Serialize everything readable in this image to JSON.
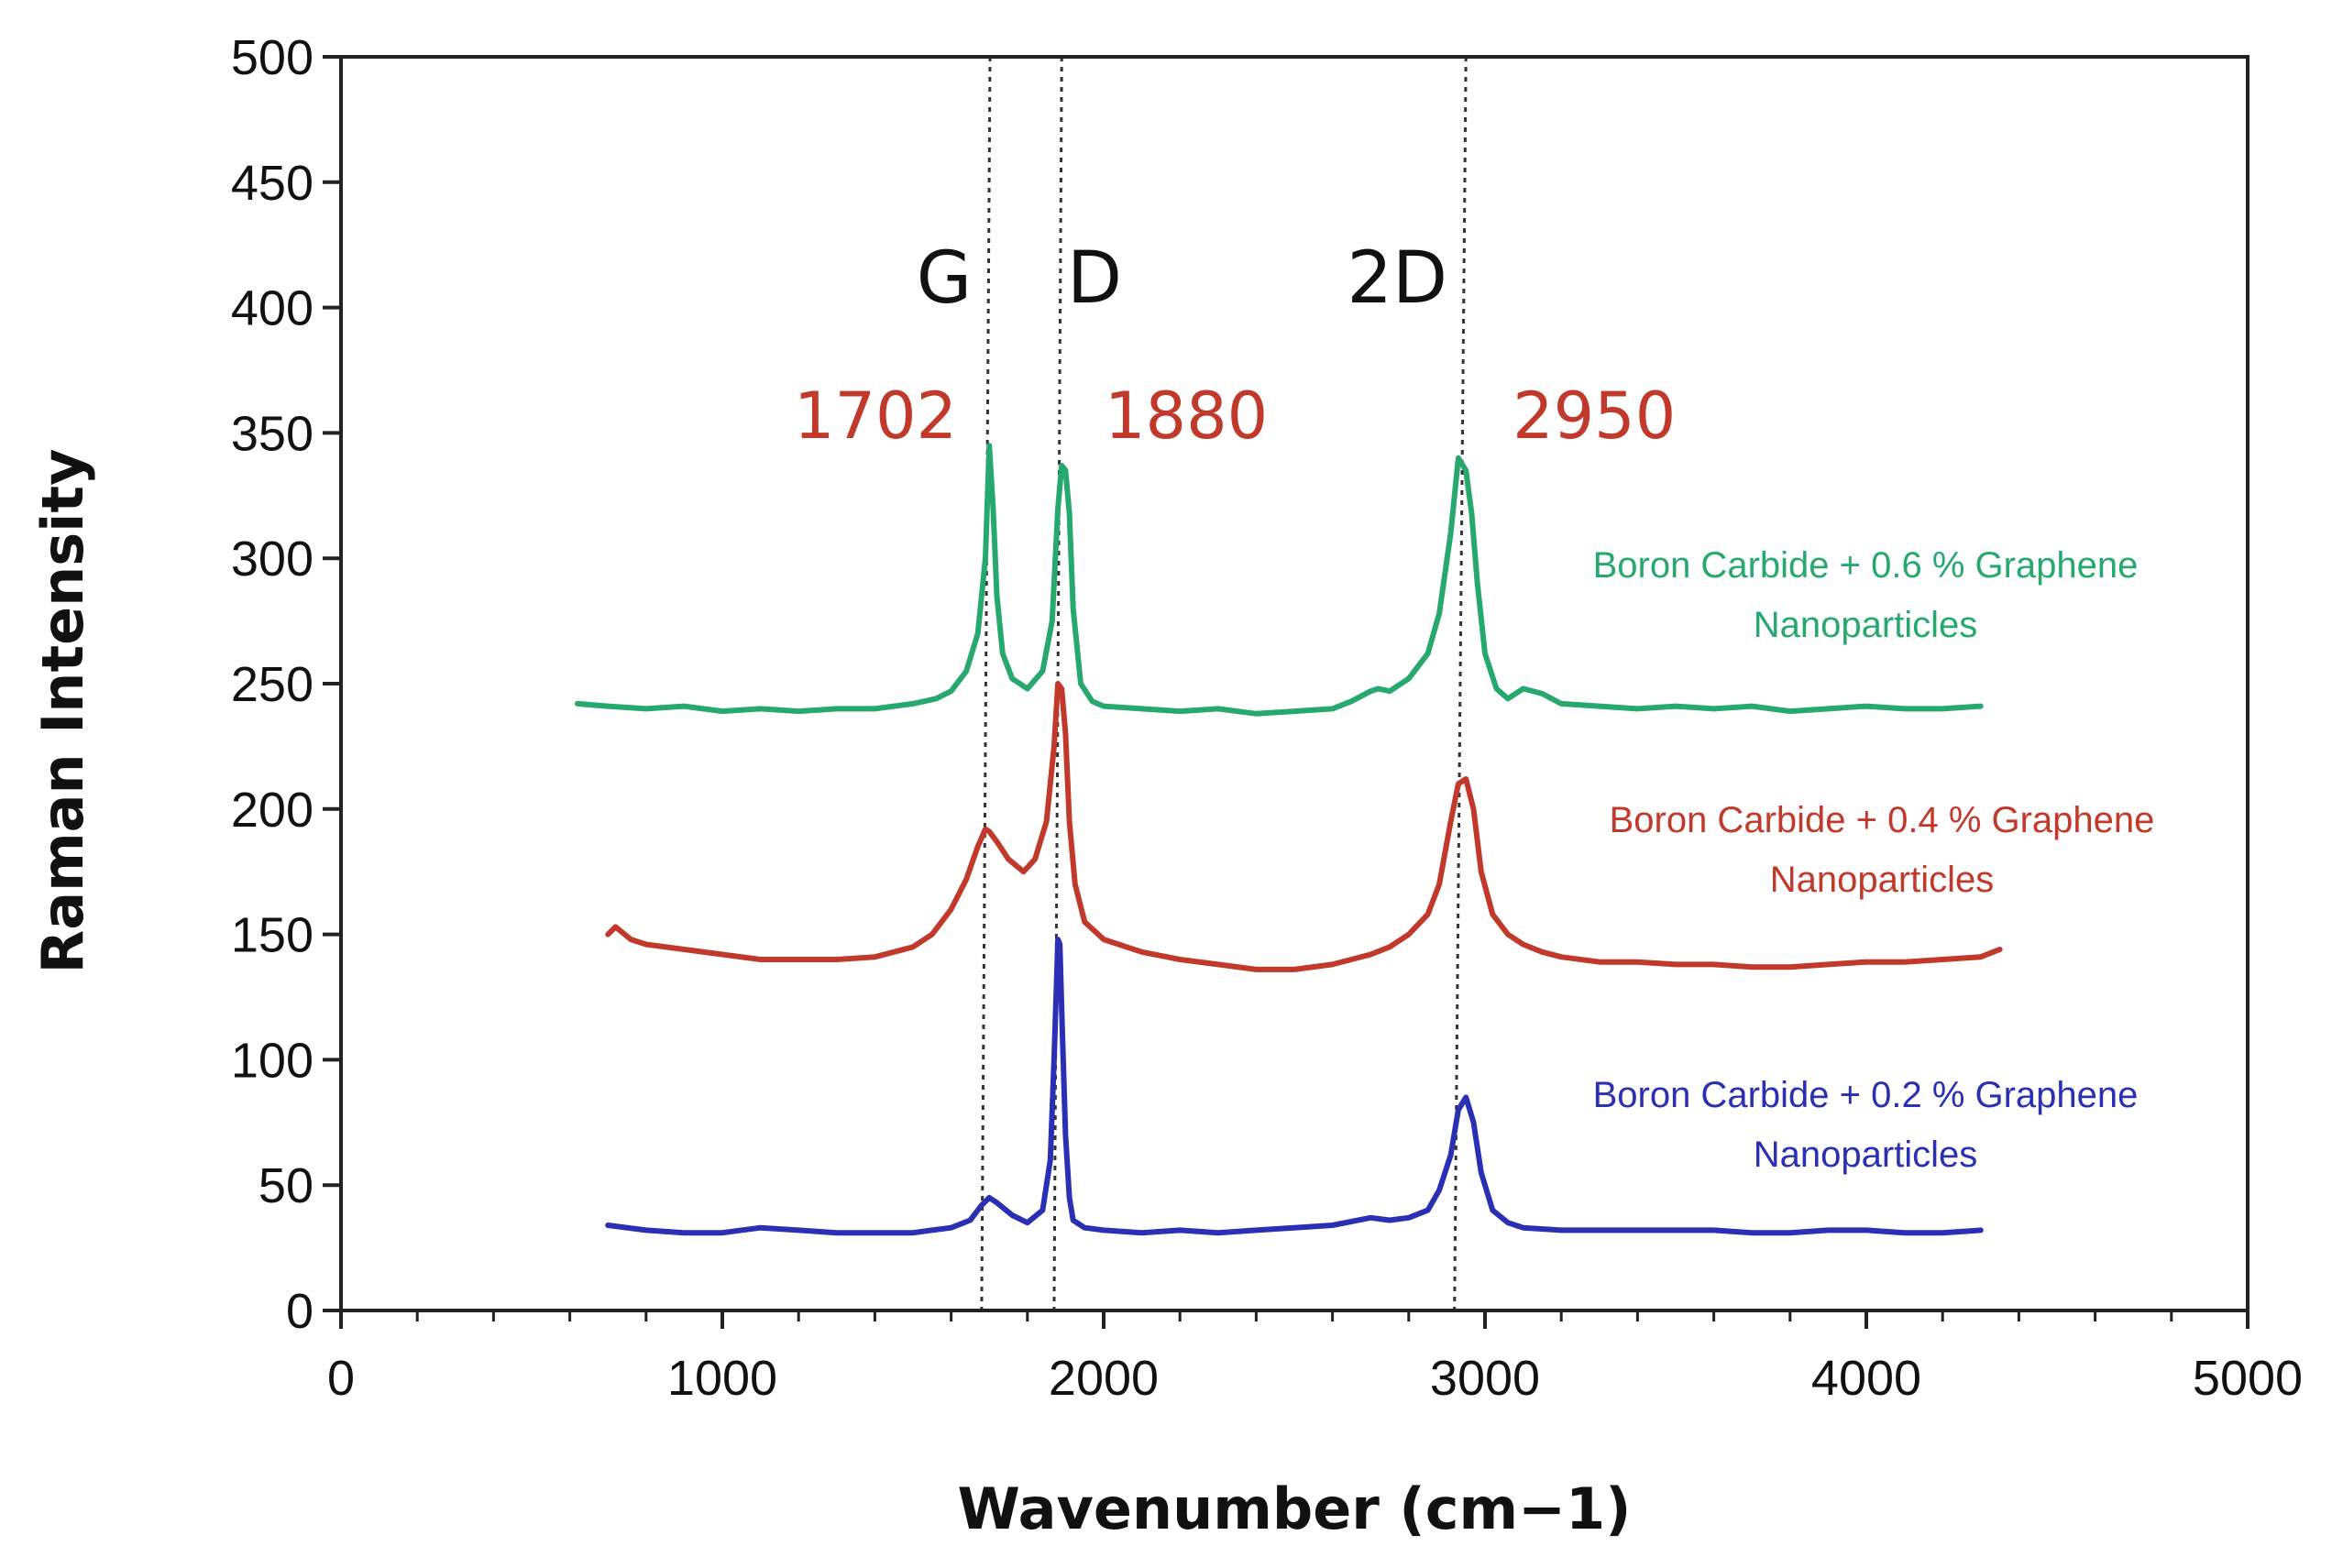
{
  "chart_data": {
    "type": "line",
    "title": "",
    "xlabel": "Wavenumber (cm−1)",
    "ylabel": "Raman Intensity",
    "xlim": [
      0,
      5000
    ],
    "ylim": [
      0,
      500
    ],
    "x_ticks": [
      {
        "value": 0,
        "label": "0"
      },
      {
        "value": 1000,
        "label": "1000"
      },
      {
        "value": 2000,
        "label": "2000"
      },
      {
        "value": 3000,
        "label": "3000"
      },
      {
        "value": 4000,
        "label": "4000"
      },
      {
        "value": 5000,
        "label": "5000"
      }
    ],
    "y_ticks": [
      {
        "value": 0,
        "label": "0"
      },
      {
        "value": 50,
        "label": "50"
      },
      {
        "value": 100,
        "label": "100"
      },
      {
        "value": 150,
        "label": "150"
      },
      {
        "value": 200,
        "label": "200"
      },
      {
        "value": 250,
        "label": "250"
      },
      {
        "value": 300,
        "label": "300"
      },
      {
        "value": 350,
        "label": "350"
      },
      {
        "value": 400,
        "label": "400"
      },
      {
        "value": 450,
        "label": "450"
      },
      {
        "value": 500,
        "label": "500"
      }
    ],
    "grid": false,
    "band_labels": [
      {
        "text": "G",
        "x": 1702
      },
      {
        "text": "D",
        "x": 1880
      },
      {
        "text": "2D",
        "x": 2950
      }
    ],
    "peak_labels": [
      {
        "text": "1702",
        "x": 1702,
        "color": "#c0392b"
      },
      {
        "text": "1880",
        "x": 1880,
        "color": "#c0392b"
      },
      {
        "text": "2950",
        "x": 2950,
        "color": "#c0392b"
      }
    ],
    "reference_lines": [
      {
        "x_top": 1702,
        "x_bottom": 1680
      },
      {
        "x_top": 1890,
        "x_bottom": 1870
      },
      {
        "x_top": 2950,
        "x_bottom": 2920
      }
    ],
    "series": [
      {
        "name": "Boron Carbide + 0.6 % Graphene Nanoparticles",
        "legend_lines": [
          "Boron Carbide + 0.6 % Graphene",
          "Nanoparticles"
        ],
        "color": "#27a86f",
        "baseline": 240,
        "x": [
          620,
          700,
          800,
          900,
          1000,
          1100,
          1200,
          1300,
          1400,
          1500,
          1560,
          1600,
          1640,
          1670,
          1690,
          1700,
          1710,
          1720,
          1735,
          1760,
          1800,
          1840,
          1865,
          1880,
          1890,
          1900,
          1910,
          1920,
          1940,
          1970,
          2000,
          2100,
          2200,
          2300,
          2400,
          2500,
          2600,
          2650,
          2700,
          2720,
          2750,
          2800,
          2850,
          2880,
          2910,
          2930,
          2950,
          2965,
          2980,
          3000,
          3030,
          3060,
          3100,
          3150,
          3200,
          3300,
          3400,
          3500,
          3600,
          3700,
          3800,
          3900,
          4000,
          4100,
          4200,
          4300
        ],
        "values": [
          242,
          241,
          240,
          241,
          239,
          240,
          239,
          240,
          240,
          242,
          244,
          247,
          255,
          270,
          300,
          345,
          320,
          285,
          262,
          252,
          248,
          255,
          275,
          320,
          337,
          335,
          318,
          280,
          250,
          243,
          241,
          240,
          239,
          240,
          238,
          239,
          240,
          243,
          247,
          248,
          247,
          252,
          262,
          278,
          310,
          340,
          335,
          318,
          290,
          262,
          248,
          244,
          248,
          246,
          242,
          241,
          240,
          241,
          240,
          241,
          239,
          240,
          241,
          240,
          240,
          241
        ]
      },
      {
        "name": "Boron Carbide + 0.4 % Graphene Nanoparticles",
        "legend_lines": [
          "Boron Carbide + 0.4 % Graphene",
          "Nanoparticles"
        ],
        "color": "#c0392b",
        "baseline": 140,
        "x": [
          700,
          720,
          760,
          800,
          900,
          1000,
          1100,
          1200,
          1300,
          1400,
          1450,
          1500,
          1550,
          1600,
          1640,
          1670,
          1690,
          1700,
          1720,
          1750,
          1790,
          1820,
          1850,
          1870,
          1880,
          1890,
          1900,
          1910,
          1925,
          1950,
          2000,
          2100,
          2200,
          2300,
          2400,
          2500,
          2600,
          2700,
          2750,
          2800,
          2850,
          2880,
          2910,
          2930,
          2950,
          2970,
          2990,
          3020,
          3060,
          3100,
          3150,
          3200,
          3300,
          3400,
          3500,
          3600,
          3700,
          3800,
          3900,
          4000,
          4100,
          4200,
          4300,
          4350
        ],
        "values": [
          150,
          153,
          148,
          146,
          144,
          142,
          140,
          140,
          140,
          141,
          143,
          145,
          150,
          160,
          172,
          185,
          192,
          191,
          187,
          180,
          175,
          180,
          195,
          225,
          250,
          248,
          230,
          195,
          170,
          155,
          148,
          143,
          140,
          138,
          136,
          136,
          138,
          142,
          145,
          150,
          158,
          170,
          195,
          210,
          212,
          200,
          175,
          158,
          150,
          146,
          143,
          141,
          139,
          139,
          138,
          138,
          137,
          137,
          138,
          139,
          139,
          140,
          141,
          144
        ]
      },
      {
        "name": "Boron Carbide + 0.2 % Graphene Nanoparticles",
        "legend_lines": [
          "Boron Carbide + 0.2 % Graphene",
          "Nanoparticles"
        ],
        "color": "#2b2fb3",
        "baseline": 32,
        "x": [
          700,
          800,
          900,
          1000,
          1100,
          1200,
          1300,
          1400,
          1500,
          1550,
          1600,
          1650,
          1680,
          1700,
          1720,
          1760,
          1800,
          1840,
          1860,
          1870,
          1880,
          1885,
          1890,
          1900,
          1910,
          1920,
          1950,
          2000,
          2100,
          2200,
          2300,
          2400,
          2500,
          2600,
          2700,
          2750,
          2800,
          2850,
          2880,
          2910,
          2930,
          2950,
          2970,
          2990,
          3020,
          3060,
          3100,
          3200,
          3300,
          3400,
          3500,
          3600,
          3700,
          3800,
          3900,
          4000,
          4100,
          4200,
          4300
        ],
        "values": [
          34,
          32,
          31,
          31,
          33,
          32,
          31,
          31,
          31,
          32,
          33,
          36,
          42,
          45,
          43,
          38,
          35,
          40,
          60,
          100,
          148,
          146,
          120,
          70,
          45,
          36,
          33,
          32,
          31,
          32,
          31,
          32,
          33,
          34,
          37,
          36,
          37,
          40,
          48,
          62,
          80,
          85,
          75,
          55,
          40,
          35,
          33,
          32,
          32,
          32,
          32,
          32,
          31,
          31,
          32,
          32,
          31,
          31,
          32
        ]
      }
    ],
    "legend_placement": "inline-right"
  }
}
